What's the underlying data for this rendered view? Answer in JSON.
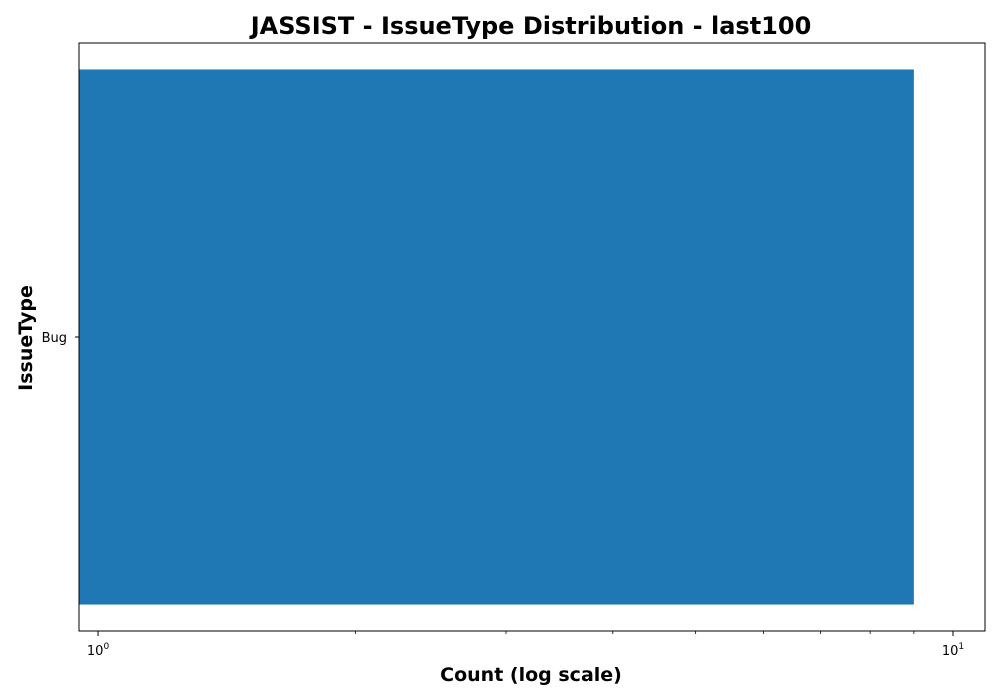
{
  "chart_data": {
    "type": "bar",
    "orientation": "horizontal",
    "title": "JASSIST - IssueType Distribution - last100",
    "xlabel": "Count (log scale)",
    "ylabel": "IssueType",
    "x_scale": "log",
    "xlim": [
      0.95,
      10.9
    ],
    "categories": [
      "Bug"
    ],
    "values": [
      9
    ],
    "x_ticks": [
      {
        "base": "10",
        "exp": "0",
        "value": 1
      },
      {
        "base": "10",
        "exp": "1",
        "value": 10
      }
    ],
    "colors": {
      "bar": "#1f77b4"
    },
    "grid": false
  }
}
